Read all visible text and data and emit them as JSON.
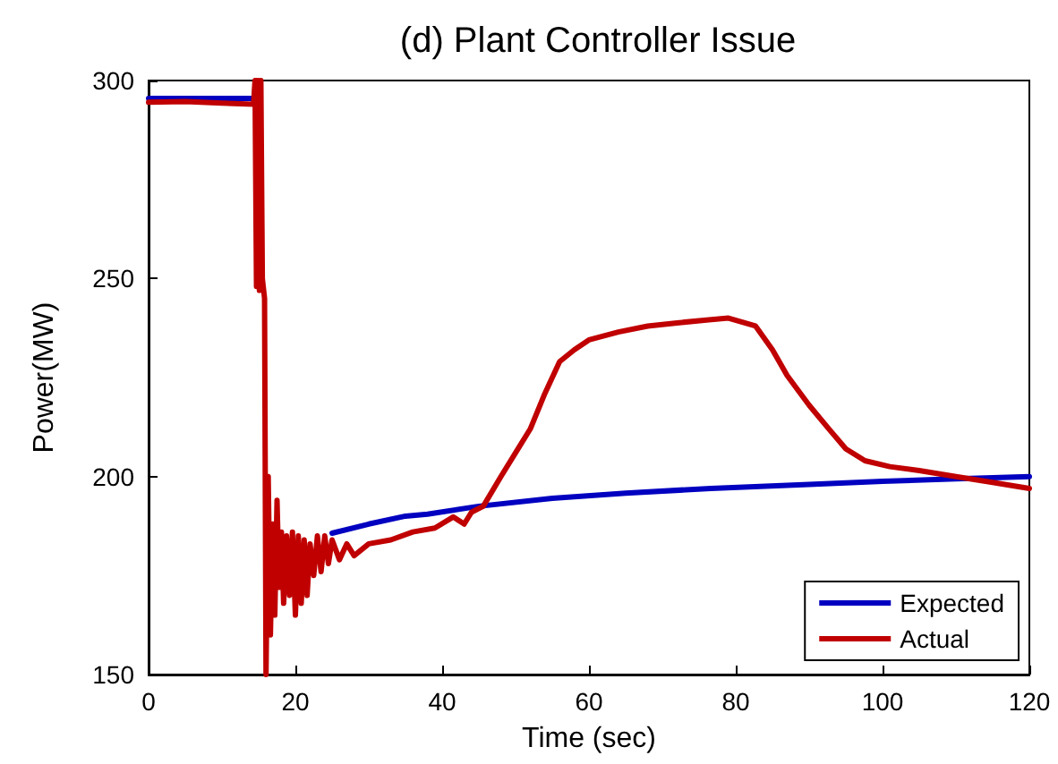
{
  "chart_data": {
    "type": "line",
    "title": "(d) Plant Controller Issue",
    "xlabel": "Time (sec)",
    "ylabel": "Power(MW)",
    "xlim": [
      0,
      120
    ],
    "xticks": [
      0,
      20,
      40,
      60,
      80,
      100,
      120
    ],
    "ylim": [
      150,
      300
    ],
    "yticks": [
      150,
      200,
      250,
      300
    ],
    "grid": false,
    "legend": "bottom right",
    "marker": "none",
    "line_style": "solid",
    "series": [
      {
        "name": "Expected",
        "color": "#0000c0",
        "x": [
          0,
          14.5,
          16,
          20,
          22,
          25,
          30,
          35,
          38,
          45,
          55,
          65,
          76.6,
          90,
          100,
          110,
          120
        ],
        "values": [
          295.5,
          295.5,
          null,
          null,
          null,
          185.7,
          188,
          190,
          190.5,
          192.5,
          194.5,
          195.8,
          197,
          198,
          198.8,
          199.4,
          200
        ]
      },
      {
        "name": "Actual",
        "color": "#c00000",
        "x": [
          0,
          5,
          10,
          14.3,
          14.5,
          14.7,
          14.9,
          15.1,
          15.3,
          15.5,
          15.8,
          16,
          16.3,
          16.6,
          16.9,
          17.2,
          17.5,
          17.8,
          18.1,
          18.4,
          18.8,
          19.2,
          19.6,
          20,
          20.4,
          20.8,
          21.2,
          21.6,
          22,
          22.5,
          23,
          23.5,
          24,
          24.5,
          25,
          26,
          27,
          28,
          30,
          33,
          36,
          39,
          41.5,
          43,
          44,
          45.6,
          48,
          50,
          52,
          54,
          56,
          58,
          60,
          64,
          68,
          72,
          76,
          79,
          82.7,
          85,
          87,
          90,
          92.7,
          95,
          97.6,
          101,
          105,
          110,
          115,
          120
        ],
        "values": [
          294.5,
          294.7,
          294.3,
          294,
          300,
          248,
          300,
          247,
          300,
          250,
          245,
          150,
          200,
          160,
          188,
          165,
          194,
          172,
          186,
          168,
          185,
          170,
          186,
          165,
          185,
          168,
          184,
          170,
          183,
          175,
          185,
          176,
          185,
          178,
          184,
          179,
          183,
          180,
          183,
          184,
          186,
          187,
          189.8,
          188,
          191,
          192.5,
          200,
          206,
          212,
          221,
          229,
          232,
          234.5,
          236.5,
          238,
          238.8,
          239.5,
          240,
          238,
          232,
          225.5,
          218,
          212,
          207,
          204,
          202.5,
          201.5,
          200,
          198.5,
          197
        ]
      }
    ]
  }
}
